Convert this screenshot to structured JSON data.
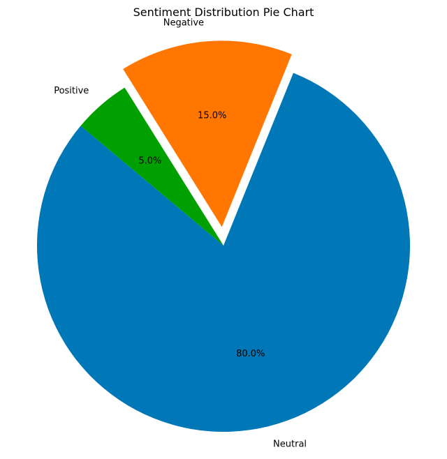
{
  "chart_data": {
    "type": "pie",
    "title": "Sentiment Distribution Pie Chart",
    "slices": [
      {
        "label": "Neutral",
        "value": 80.0,
        "pct_label": "80.0%",
        "color": "#0077b6",
        "exploded": false
      },
      {
        "label": "Negative",
        "value": 15.0,
        "pct_label": "15.0%",
        "color": "#ff7700",
        "exploded": true
      },
      {
        "label": "Positive",
        "value": 5.0,
        "pct_label": "5.0%",
        "color": "#00a000",
        "exploded": false
      }
    ],
    "legend": "none"
  }
}
